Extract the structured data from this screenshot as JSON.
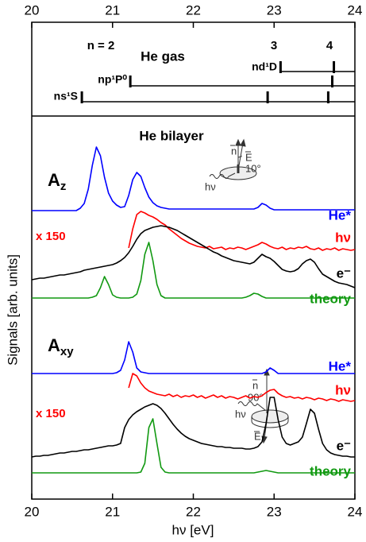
{
  "chart_data": [
    {
      "type": "levels",
      "title": "He gas",
      "xlim": [
        20,
        24
      ],
      "xticks": [
        20,
        21,
        22,
        23,
        24
      ],
      "annotations": [
        "n = 2",
        "3",
        "4"
      ],
      "series": [
        {
          "name": "ns¹S",
          "x": [
            20.62,
            22.92,
            23.67
          ]
        },
        {
          "name": "np¹P⁰",
          "x": [
            21.22,
            23.72
          ]
        },
        {
          "name": "nd¹D",
          "x": [
            23.08,
            23.74
          ]
        }
      ]
    },
    {
      "type": "line",
      "title": "He bilayer",
      "xlabel": "hν [eV]",
      "ylabel": "Signals [arb. units]",
      "xlim": [
        20,
        24
      ],
      "xticks": [
        20,
        21,
        22,
        23,
        24
      ],
      "ylim": [
        0,
        482
      ],
      "x": [
        20.0,
        20.05,
        20.1,
        20.15,
        20.2,
        20.25,
        20.3,
        20.35,
        20.4,
        20.45,
        20.5,
        20.55,
        20.6,
        20.65,
        20.7,
        20.75,
        20.8,
        20.85,
        20.9,
        20.95,
        21.0,
        21.05,
        21.1,
        21.15,
        21.2,
        21.25,
        21.3,
        21.35,
        21.4,
        21.45,
        21.5,
        21.55,
        21.6,
        21.65,
        21.7,
        21.75,
        21.8,
        21.85,
        21.9,
        21.95,
        22.0,
        22.05,
        22.1,
        22.15,
        22.2,
        22.25,
        22.3,
        22.35,
        22.4,
        22.45,
        22.5,
        22.55,
        22.6,
        22.65,
        22.7,
        22.75,
        22.8,
        22.85,
        22.9,
        22.95,
        23.0,
        23.05,
        23.1,
        23.15,
        23.2,
        23.25,
        23.3,
        23.35,
        23.4,
        23.45,
        23.5,
        23.55,
        23.6,
        23.65,
        23.7,
        23.75,
        23.8,
        23.85,
        23.9,
        23.95,
        24.0
      ],
      "groups": [
        {
          "name": "A",
          "subscript": "z",
          "note": "x 150",
          "insets": {
            "normal": "n",
            "field": "E",
            "angle": "10°",
            "photon": "hν"
          },
          "series": [
            {
              "name": "He*",
              "color": "#0000ff",
              "values": [
                363,
                363,
                363,
                363,
                363,
                363,
                363,
                363,
                363,
                363,
                363,
                363,
                366,
                372,
                390,
                420,
                443,
                432,
                405,
                385,
                375,
                370,
                367,
                368,
                382,
                402,
                411,
                406,
                392,
                380,
                373,
                369,
                367,
                366,
                365,
                365,
                365,
                365,
                365,
                365,
                365,
                365,
                365,
                365,
                365,
                365,
                365,
                365,
                365,
                365,
                365,
                365,
                365,
                365,
                365,
                365,
                367,
                372,
                370,
                366,
                364,
                364,
                364,
                364,
                364,
                364,
                364,
                364,
                364,
                364,
                364,
                364,
                364,
                364,
                364,
                364,
                364,
                364,
                364,
                364,
                364
              ]
            },
            {
              "name": "hν",
              "color": "#ff0000",
              "values": [
                null,
                null,
                null,
                null,
                null,
                null,
                null,
                null,
                null,
                null,
                null,
                null,
                null,
                null,
                null,
                null,
                null,
                null,
                null,
                null,
                null,
                null,
                null,
                null,
                316,
                340,
                358,
                362,
                360,
                357,
                355,
                352,
                348,
                345,
                340,
                336,
                332,
                328,
                325,
                322,
                320,
                318,
                317,
                316,
                318,
                315,
                316,
                317,
                314,
                316,
                315,
                317,
                316,
                314,
                316,
                318,
                320,
                323,
                321,
                318,
                316,
                315,
                317,
                314,
                316,
                315,
                317,
                316,
                318,
                315,
                314,
                316,
                313,
                315,
                314,
                316,
                313,
                315,
                314,
                313,
                314
              ]
            },
            {
              "name": "e⁻",
              "color": "#000000",
              "values": [
                276,
                277,
                278,
                278,
                279,
                280,
                281,
                282,
                282,
                283,
                284,
                285,
                286,
                288,
                289,
                290,
                291,
                292,
                293,
                294,
                295,
                297,
                300,
                304,
                310,
                318,
                327,
                334,
                338,
                340,
                342,
                343,
                344,
                343,
                342,
                340,
                338,
                335,
                332,
                329,
                326,
                323,
                320,
                317,
                314,
                311,
                309,
                306,
                304,
                302,
                300,
                299,
                298,
                297,
                296,
                298,
                303,
                308,
                305,
                303,
                299,
                294,
                289,
                287,
                286,
                287,
                290,
                296,
                300,
                302,
                298,
                290,
                283,
                280,
                277,
                274,
                272,
                271,
                270,
                268,
                266
              ]
            },
            {
              "name": "theory",
              "color": "#119911",
              "values": [
                253,
                253,
                253,
                253,
                253,
                253,
                253,
                253,
                253,
                253,
                253,
                253,
                253,
                253,
                253,
                254,
                256,
                266,
                280,
                270,
                257,
                254,
                253,
                253,
                253,
                254,
                258,
                275,
                308,
                323,
                300,
                270,
                256,
                253,
                253,
                253,
                253,
                253,
                253,
                253,
                253,
                253,
                253,
                253,
                253,
                253,
                253,
                253,
                253,
                253,
                253,
                253,
                253,
                254,
                256,
                259,
                258,
                255,
                253,
                253,
                253,
                253,
                253,
                253,
                253,
                253,
                253,
                253,
                253,
                253,
                253,
                253,
                253,
                253,
                253,
                253,
                253,
                253,
                253,
                253,
                253
              ]
            }
          ]
        },
        {
          "name": "A",
          "subscript": "xy",
          "note": "x 150",
          "insets": {
            "normal": "n",
            "field": "E",
            "angle": "90°",
            "photon": "hν"
          },
          "series": [
            {
              "name": "He*",
              "color": "#0000ff",
              "values": [
                158,
                158,
                158,
                158,
                158,
                158,
                158,
                158,
                158,
                158,
                158,
                158,
                158,
                158,
                158,
                158,
                158,
                158,
                158,
                158,
                158,
                159,
                162,
                175,
                198,
                185,
                165,
                160,
                159,
                158,
                158,
                158,
                158,
                158,
                158,
                158,
                158,
                158,
                158,
                158,
                158,
                158,
                158,
                158,
                158,
                158,
                158,
                158,
                158,
                158,
                158,
                158,
                158,
                158,
                158,
                158,
                158,
                158,
                160,
                165,
                162,
                158,
                158,
                158,
                158,
                158,
                158,
                158,
                158,
                158,
                158,
                158,
                158,
                158,
                158,
                158,
                158,
                158,
                158,
                158,
                158
              ]
            },
            {
              "name": "hν",
              "color": "#ff0000",
              "values": [
                null,
                null,
                null,
                null,
                null,
                null,
                null,
                null,
                null,
                null,
                null,
                null,
                null,
                null,
                null,
                null,
                null,
                null,
                null,
                null,
                null,
                null,
                null,
                null,
                140,
                158,
                155,
                146,
                140,
                136,
                134,
                132,
                131,
                130,
                132,
                129,
                131,
                128,
                130,
                129,
                131,
                128,
                130,
                127,
                129,
                131,
                128,
                130,
                127,
                129,
                128,
                126,
                128,
                130,
                127,
                129,
                128,
                130,
                134,
                137,
                138,
                133,
                130,
                128,
                129,
                127,
                128,
                126,
                128,
                127,
                125,
                127,
                126,
                124,
                126,
                125,
                123,
                125,
                124,
                123,
                124
              ]
            },
            {
              "name": "e⁻",
              "color": "#000000",
              "values": [
                53,
                54,
                54,
                55,
                55,
                56,
                57,
                58,
                58,
                59,
                60,
                60,
                61,
                62,
                62,
                63,
                64,
                65,
                66,
                67,
                67,
                68,
                70,
                90,
                100,
                106,
                110,
                113,
                116,
                118,
                120,
                118,
                114,
                108,
                101,
                94,
                88,
                83,
                79,
                76,
                74,
                72,
                70,
                69,
                68,
                67,
                66,
                66,
                65,
                65,
                64,
                64,
                64,
                63,
                63,
                64,
                66,
                72,
                95,
                128,
                128,
                100,
                78,
                70,
                68,
                70,
                72,
                78,
                95,
                113,
                108,
                88,
                70,
                62,
                58,
                56,
                55,
                54,
                54,
                53,
                53
              ]
            },
            {
              "name": "theory",
              "color": "#119911",
              "values": [
                33,
                33,
                33,
                33,
                33,
                33,
                33,
                33,
                33,
                33,
                33,
                33,
                33,
                33,
                33,
                33,
                33,
                33,
                33,
                33,
                33,
                33,
                33,
                33,
                33,
                33,
                33,
                34,
                45,
                90,
                101,
                70,
                40,
                34,
                33,
                33,
                33,
                33,
                33,
                33,
                33,
                33,
                33,
                33,
                33,
                33,
                33,
                33,
                33,
                33,
                33,
                33,
                33,
                33,
                33,
                33,
                34,
                35,
                36,
                35,
                34,
                33,
                33,
                33,
                33,
                33,
                33,
                33,
                33,
                33,
                33,
                33,
                33,
                33,
                33,
                33,
                33,
                33,
                33,
                33,
                33
              ]
            }
          ]
        }
      ]
    }
  ]
}
